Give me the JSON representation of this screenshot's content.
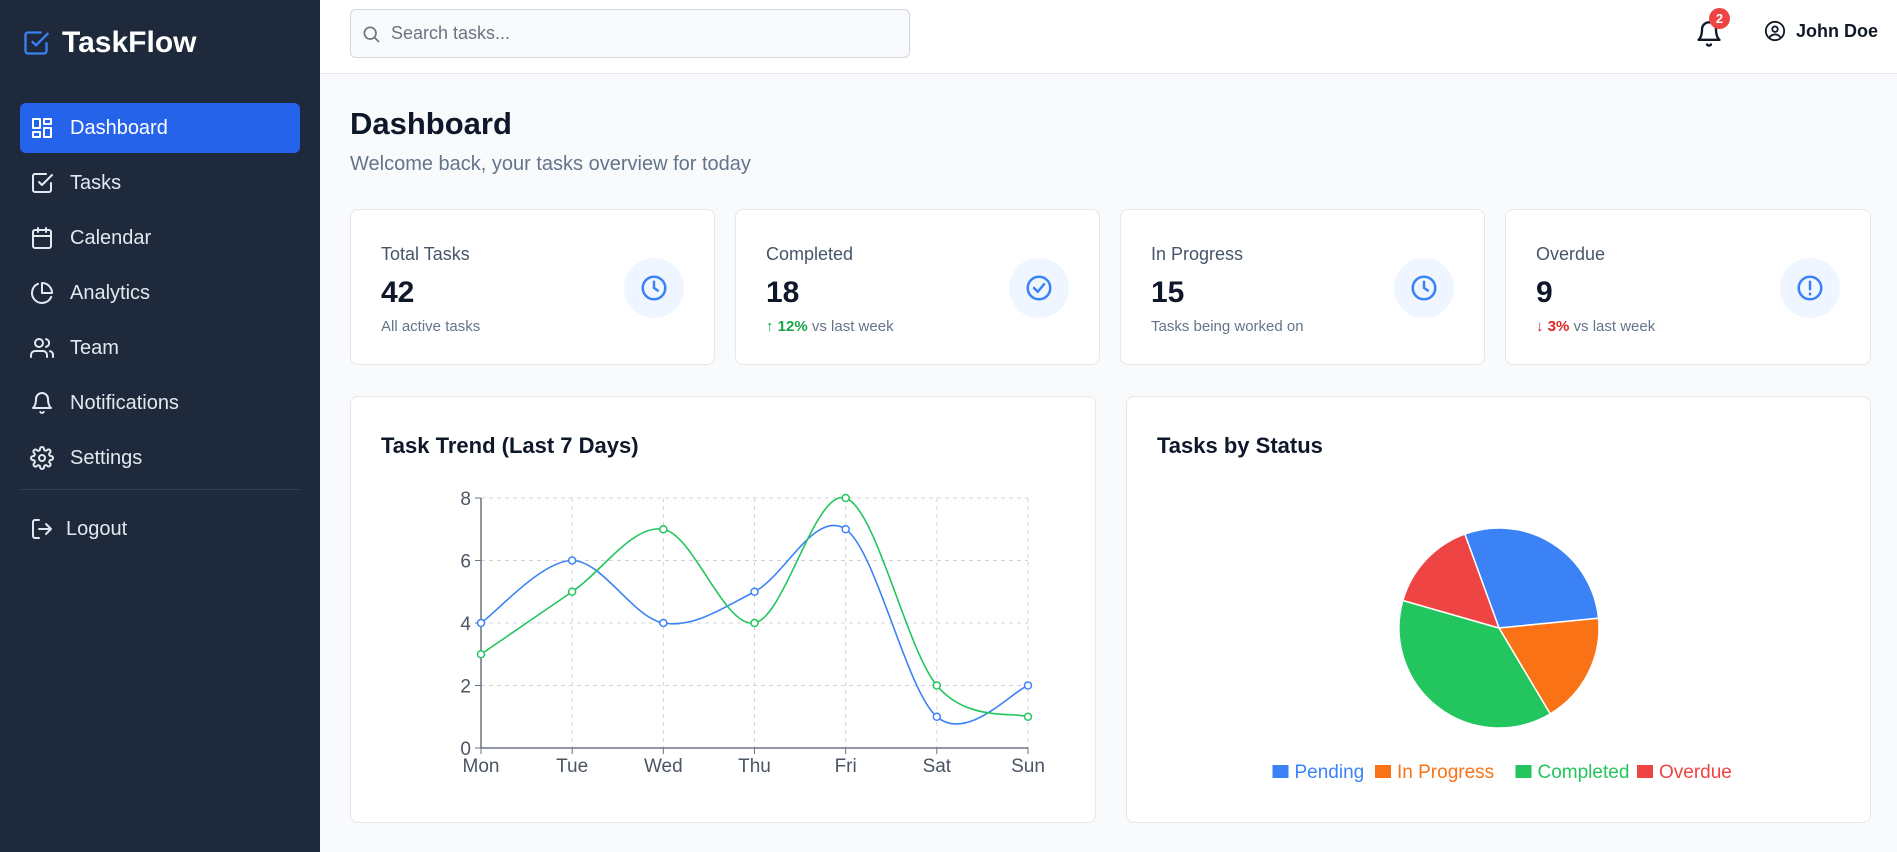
{
  "brand": {
    "name": "TaskFlow",
    "icon": "check-square-icon"
  },
  "nav": [
    {
      "label": "Dashboard",
      "icon": "grid-icon",
      "active": true
    },
    {
      "label": "Tasks",
      "icon": "check-square-icon"
    },
    {
      "label": "Calendar",
      "icon": "calendar-icon"
    },
    {
      "label": "Analytics",
      "icon": "pie-chart-icon"
    },
    {
      "label": "Team",
      "icon": "users-icon"
    },
    {
      "label": "Notifications",
      "icon": "bell-icon"
    },
    {
      "label": "Settings",
      "icon": "gear-icon"
    }
  ],
  "logout_label": "Logout",
  "search": {
    "placeholder": "Search tasks..."
  },
  "notifications": {
    "count": "2"
  },
  "user": {
    "name": "John Doe"
  },
  "page": {
    "title": "Dashboard",
    "subtitle": "Welcome back, your tasks overview for today"
  },
  "stats": [
    {
      "label": "Total Tasks",
      "value": "42",
      "note": "All active tasks",
      "icon": "clock-icon"
    },
    {
      "label": "Completed",
      "value": "18",
      "trend": "↑ 12%",
      "note": " vs last week",
      "icon": "check-circle-icon"
    },
    {
      "label": "In Progress",
      "value": "15",
      "note": "Tasks being worked on",
      "icon": "clock-icon"
    },
    {
      "label": "Overdue",
      "value": "9",
      "trend": "↓ 3%",
      "note": " vs last week",
      "icon": "alert-circle-icon"
    }
  ],
  "colors": {
    "accent": "#2563eb",
    "sidebar": "#1e293b",
    "blue": "#3b82f6",
    "green": "#22c55e",
    "orange": "#f97316",
    "red": "#ef4444"
  },
  "chart_data": [
    {
      "type": "line",
      "title": "Task Trend (Last 7 Days)",
      "categories": [
        "Mon",
        "Tue",
        "Wed",
        "Thu",
        "Fri",
        "Sat",
        "Sun"
      ],
      "series": [
        {
          "values": [
            4,
            6,
            4,
            5,
            7,
            1,
            2
          ],
          "color": "#3b82f6"
        },
        {
          "values": [
            3,
            5,
            7,
            4,
            8,
            2,
            1
          ],
          "color": "#22c55e"
        }
      ],
      "yticks": [
        "0",
        "2",
        "4",
        "6",
        "8"
      ],
      "ylim": [
        0,
        8
      ],
      "grid": true
    },
    {
      "type": "pie",
      "title": "Tasks by Status",
      "labels": [
        "Pending",
        "In Progress",
        "Completed",
        "Overdue"
      ],
      "values": [
        29,
        18,
        38,
        15
      ],
      "colors": [
        "#3b82f6",
        "#f97316",
        "#22c55e",
        "#ef4444"
      ],
      "legend": "bottom"
    }
  ]
}
